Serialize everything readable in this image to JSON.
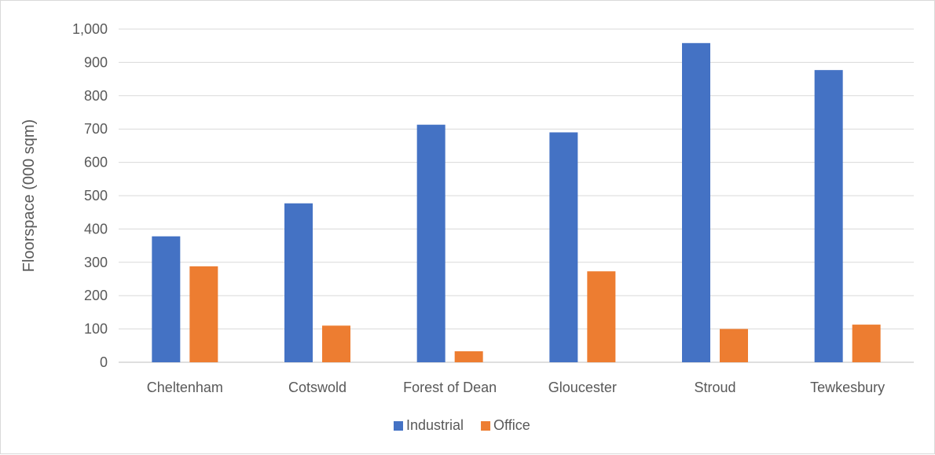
{
  "chart_data": {
    "type": "bar",
    "title": "",
    "xlabel": "",
    "ylabel": "Floorspace (000 sqm)",
    "ylim": [
      0,
      1000
    ],
    "yticks": [
      0,
      100,
      200,
      300,
      400,
      500,
      600,
      700,
      800,
      900,
      1000
    ],
    "ytick_labels": [
      "0",
      "100",
      "200",
      "300",
      "400",
      "500",
      "600",
      "700",
      "800",
      "900",
      "1,000"
    ],
    "categories": [
      "Cheltenham",
      "Cotswold",
      "Forest of Dean",
      "Gloucester",
      "Stroud",
      "Tewkesbury"
    ],
    "series": [
      {
        "name": "Industrial",
        "color": "#4472c4",
        "values": [
          378,
          477,
          713,
          690,
          958,
          877
        ]
      },
      {
        "name": "Office",
        "color": "#ed7d31",
        "values": [
          288,
          110,
          33,
          273,
          100,
          113
        ]
      }
    ],
    "grid": true,
    "legend_position": "bottom"
  }
}
